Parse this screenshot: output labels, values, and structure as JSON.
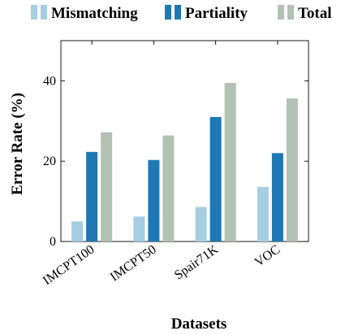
{
  "chart_data": {
    "type": "bar",
    "categories": [
      "IMCPT100",
      "IMCPT50",
      "Spair71K",
      "VOC"
    ],
    "series": [
      {
        "name": "Mismatching",
        "color": "#a6cee3",
        "values": [
          5.0,
          6.2,
          8.6,
          13.6
        ]
      },
      {
        "name": "Partiality",
        "color": "#1f78b4",
        "values": [
          22.3,
          20.3,
          31.0,
          22.0
        ]
      },
      {
        "name": "Total",
        "color": "#b2c2b5",
        "values": [
          27.2,
          26.4,
          39.5,
          35.6
        ]
      }
    ],
    "xlabel": "Datasets",
    "ylabel": "Error Rate (%)",
    "ylim": [
      0,
      50
    ],
    "yticks": [
      0,
      20,
      40
    ],
    "ytick_labels": [
      "0",
      "20",
      "40"
    ],
    "grid": false,
    "legend_position": "top"
  }
}
